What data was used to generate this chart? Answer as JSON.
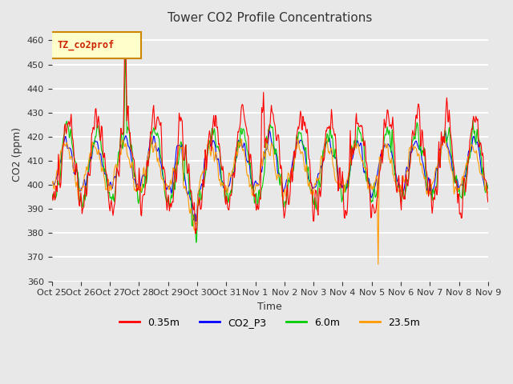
{
  "title": "Tower CO2 Profile Concentrations",
  "xlabel": "Time",
  "ylabel": "CO2 (ppm)",
  "ylim": [
    360,
    465
  ],
  "yticks": [
    360,
    370,
    380,
    390,
    400,
    410,
    420,
    430,
    440,
    450,
    460
  ],
  "series_colors": {
    "0.35m": "#ff0000",
    "CO2_P3": "#0000ff",
    "6.0m": "#00cc00",
    "23.5m": "#ff9900"
  },
  "legend_label": "TZ_co2prof",
  "xtick_labels": [
    "Oct 25",
    "Oct 26",
    "Oct 27",
    "Oct 28",
    "Oct 29",
    "Oct 30",
    "Oct 31",
    "Nov 1",
    "Nov 2",
    "Nov 3",
    "Nov 4",
    "Nov 5",
    "Nov 6",
    "Nov 7",
    "Nov 8",
    "Nov 9"
  ],
  "background_color": "#e8e8e8",
  "plot_bg_color": "#e8e8e8",
  "grid_color": "#ffffff",
  "seed": 42,
  "n_days": 15,
  "points_per_day": 48
}
